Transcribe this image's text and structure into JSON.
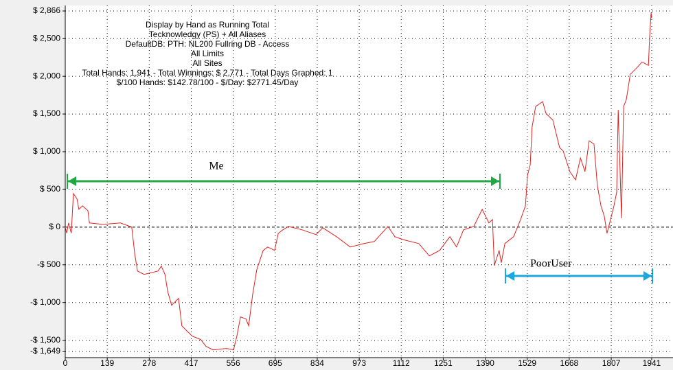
{
  "chart_data": {
    "type": "line",
    "text_block": [
      "Display by Hand as Running Total",
      "Tecknowledgy (PS) + All Aliases",
      "DefaultDB: PTH: NL200 Fullring DB - Access",
      "All Limits",
      "All Sites",
      "Total Hands: 1,941 - Total Winnings: $ 2,771 - Total Days Graphed: 1",
      "$/100 Hands: $142.78/100 - $/Day: $2771.45/Day"
    ],
    "annotations": [
      {
        "text": "Me"
      },
      {
        "text": "PoorUser"
      }
    ],
    "color": "#e02020",
    "grid": true,
    "xlim": [
      0,
      1941
    ],
    "xticks": [
      0,
      139,
      278,
      417,
      556,
      695,
      834,
      973,
      1112,
      1251,
      1390,
      1529,
      1668,
      1807,
      1941
    ],
    "ylim": [
      -1649,
      2866
    ],
    "yticks": [
      {
        "value": -1649,
        "label": "-$ 1,649"
      },
      {
        "value": -1500,
        "label": "-$ 1,500"
      },
      {
        "value": -1000,
        "label": "-$ 1,000"
      },
      {
        "value": -500,
        "label": "-$ 500"
      },
      {
        "value": 0,
        "label": "$ 0"
      },
      {
        "value": 500,
        "label": "$ 500"
      },
      {
        "value": 1000,
        "label": "$ 1,000"
      },
      {
        "value": 1500,
        "label": "$ 1,500"
      },
      {
        "value": 2000,
        "label": "$ 2,000"
      },
      {
        "value": 2500,
        "label": "$ 2,500"
      },
      {
        "value": 2866,
        "label": "$ 2,866"
      }
    ],
    "x": [
      0,
      5,
      11,
      20,
      27,
      39,
      45,
      57,
      75,
      80,
      125,
      182,
      220,
      230,
      239,
      261,
      307,
      318,
      330,
      339,
      352,
      375,
      386,
      420,
      448,
      466,
      489,
      534,
      557,
      568,
      580,
      598,
      607,
      620,
      634,
      655,
      670,
      693,
      705,
      720,
      739,
      784,
      830,
      852,
      898,
      943,
      989,
      1023,
      1068,
      1091,
      1125,
      1170,
      1205,
      1239,
      1273,
      1295,
      1318,
      1352,
      1380,
      1402,
      1414,
      1420,
      1436,
      1443,
      1455,
      1484,
      1507,
      1523,
      1530,
      1539,
      1545,
      1557,
      1580,
      1591,
      1614,
      1625,
      1636,
      1648,
      1670,
      1689,
      1705,
      1720,
      1734,
      1750,
      1761,
      1773,
      1784,
      1793,
      1802,
      1816,
      1825,
      1830,
      1836,
      1841,
      1848,
      1857,
      1870,
      1893,
      1909,
      1930,
      1934,
      1939,
      1941
    ],
    "values": [
      0,
      -80,
      55,
      -80,
      445,
      373,
      236,
      282,
      218,
      55,
      36,
      55,
      0,
      -355,
      -582,
      -627,
      -582,
      -518,
      -627,
      -855,
      -1036,
      -945,
      -1309,
      -1445,
      -1491,
      -1582,
      -1627,
      -1609,
      -1627,
      -1445,
      -1191,
      -1218,
      -1309,
      -900,
      -564,
      -309,
      -264,
      -309,
      -82,
      -36,
      9,
      -36,
      -100,
      -9,
      -127,
      -264,
      -218,
      -191,
      9,
      -127,
      -173,
      -218,
      -382,
      -309,
      -127,
      -264,
      -36,
      9,
      236,
      55,
      100,
      -509,
      -309,
      -473,
      -218,
      -127,
      100,
      282,
      691,
      827,
      1327,
      1600,
      1664,
      1509,
      1418,
      1236,
      1055,
      1009,
      736,
      627,
      918,
      736,
      1145,
      1100,
      555,
      282,
      145,
      -82,
      55,
      282,
      464,
      1555,
      782,
      118,
      1600,
      1691,
      2027,
      2118,
      2191,
      2145,
      2509,
      2845,
      2771
    ]
  }
}
